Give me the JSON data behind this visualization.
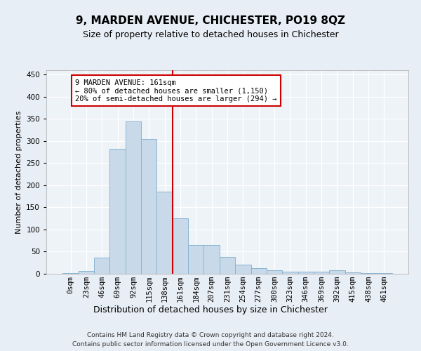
{
  "title": "9, MARDEN AVENUE, CHICHESTER, PO19 8QZ",
  "subtitle": "Size of property relative to detached houses in Chichester",
  "xlabel": "Distribution of detached houses by size in Chichester",
  "ylabel": "Number of detached properties",
  "bar_labels": [
    "0sqm",
    "23sqm",
    "46sqm",
    "69sqm",
    "92sqm",
    "115sqm",
    "138sqm",
    "161sqm",
    "184sqm",
    "207sqm",
    "231sqm",
    "254sqm",
    "277sqm",
    "300sqm",
    "323sqm",
    "346sqm",
    "369sqm",
    "392sqm",
    "415sqm",
    "438sqm",
    "461sqm"
  ],
  "bar_values": [
    2,
    7,
    37,
    283,
    345,
    304,
    185,
    125,
    65,
    65,
    38,
    20,
    12,
    8,
    5,
    4,
    4,
    8,
    3,
    2,
    1
  ],
  "bar_color": "#c8d9ea",
  "bar_edgecolor": "#8ab4d0",
  "vline_color": "#cc0000",
  "ylim": [
    0,
    460
  ],
  "yticks": [
    0,
    50,
    100,
    150,
    200,
    250,
    300,
    350,
    400,
    450
  ],
  "annotation_title": "9 MARDEN AVENUE: 161sqm",
  "annotation_line1": "← 80% of detached houses are smaller (1,150)",
  "annotation_line2": "20% of semi-detached houses are larger (294) →",
  "annotation_box_color": "#ffffff",
  "annotation_box_edgecolor": "#cc0000",
  "footer_line1": "Contains HM Land Registry data © Crown copyright and database right 2024.",
  "footer_line2": "Contains public sector information licensed under the Open Government Licence v3.0.",
  "bg_color": "#e8eef5",
  "plot_bg_color": "#eef3f8",
  "title_fontsize": 11,
  "subtitle_fontsize": 9,
  "ylabel_fontsize": 8,
  "xlabel_fontsize": 9,
  "tick_fontsize": 7.5,
  "footer_fontsize": 6.5
}
